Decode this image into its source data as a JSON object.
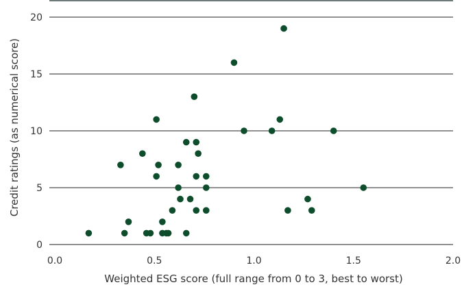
{
  "chart_data": {
    "type": "scatter",
    "xlabel": "Weighted ESG score (full range from 0 to 3, best to worst)",
    "ylabel": "Credit ratings (as numerical score)",
    "xlim": [
      0,
      2
    ],
    "ylim": [
      0,
      20
    ],
    "x_ticks": [
      "0.0",
      "0.5",
      "1.0",
      "1.5",
      "2.0"
    ],
    "y_ticks": [
      "0",
      "5",
      "10",
      "15",
      "20"
    ],
    "grid": "horizontal",
    "marker_color": "#0d4d2b",
    "points": [
      {
        "x": 0.17,
        "y": 1
      },
      {
        "x": 0.33,
        "y": 7
      },
      {
        "x": 0.35,
        "y": 1
      },
      {
        "x": 0.37,
        "y": 2
      },
      {
        "x": 0.44,
        "y": 8
      },
      {
        "x": 0.46,
        "y": 1
      },
      {
        "x": 0.48,
        "y": 1
      },
      {
        "x": 0.51,
        "y": 11
      },
      {
        "x": 0.51,
        "y": 6
      },
      {
        "x": 0.52,
        "y": 7
      },
      {
        "x": 0.54,
        "y": 2
      },
      {
        "x": 0.54,
        "y": 1
      },
      {
        "x": 0.56,
        "y": 1
      },
      {
        "x": 0.57,
        "y": 1
      },
      {
        "x": 0.59,
        "y": 3
      },
      {
        "x": 0.62,
        "y": 7
      },
      {
        "x": 0.62,
        "y": 5
      },
      {
        "x": 0.63,
        "y": 4
      },
      {
        "x": 0.66,
        "y": 9
      },
      {
        "x": 0.66,
        "y": 1
      },
      {
        "x": 0.68,
        "y": 4
      },
      {
        "x": 0.7,
        "y": 13
      },
      {
        "x": 0.71,
        "y": 6
      },
      {
        "x": 0.71,
        "y": 9
      },
      {
        "x": 0.71,
        "y": 3
      },
      {
        "x": 0.72,
        "y": 8
      },
      {
        "x": 0.76,
        "y": 6
      },
      {
        "x": 0.76,
        "y": 5
      },
      {
        "x": 0.76,
        "y": 3
      },
      {
        "x": 0.9,
        "y": 16
      },
      {
        "x": 0.95,
        "y": 10
      },
      {
        "x": 1.09,
        "y": 10
      },
      {
        "x": 1.13,
        "y": 11
      },
      {
        "x": 1.15,
        "y": 19
      },
      {
        "x": 1.17,
        "y": 3
      },
      {
        "x": 1.27,
        "y": 4
      },
      {
        "x": 1.29,
        "y": 3
      },
      {
        "x": 1.4,
        "y": 10
      },
      {
        "x": 1.55,
        "y": 5
      }
    ]
  }
}
